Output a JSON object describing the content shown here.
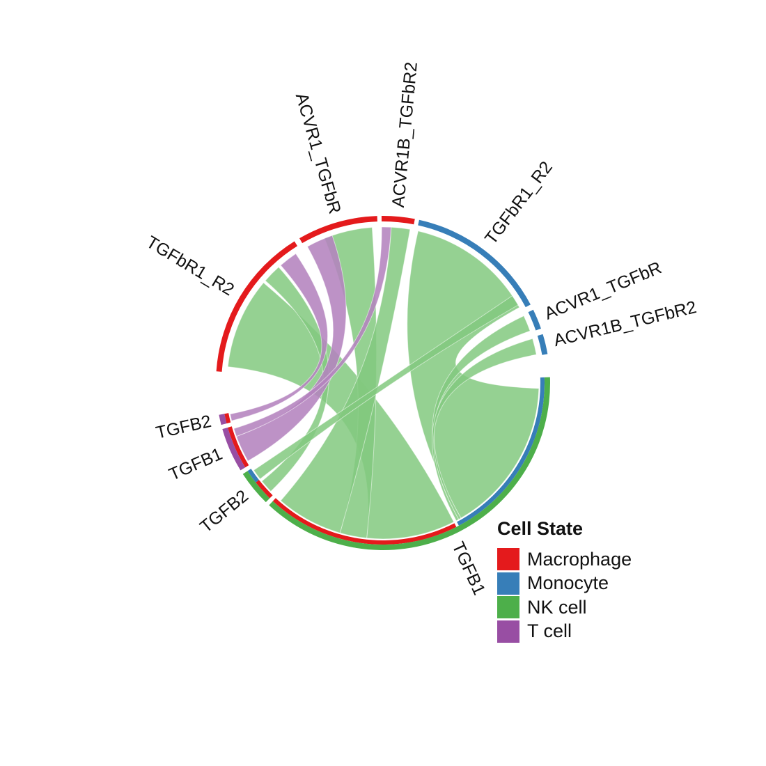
{
  "colors": {
    "Macrophage": "#E41A1C",
    "Monocyte": "#377EB8",
    "NK cell": "#4DAF4A",
    "T cell": "#984EA3",
    "chord_nk": "#82C97F",
    "chord_t": "#B483BE"
  },
  "legend": {
    "title": "Cell State",
    "items": [
      {
        "label": "Macrophage",
        "color": "#E41A1C"
      },
      {
        "label": "Monocyte",
        "color": "#377EB8"
      },
      {
        "label": "NK cell",
        "color": "#4DAF4A"
      },
      {
        "label": "T cell",
        "color": "#984EA3"
      }
    ]
  },
  "chart_data": {
    "type": "chord",
    "sectors": [
      {
        "id": "mac_TGFbR1_R2",
        "label": "TGFbR1_R2",
        "cell": "Macrophage",
        "role": "receptor",
        "start": 274,
        "end": 328
      },
      {
        "id": "mac_ACVR1_TGFbR",
        "label": "ACVR1_TGFbR",
        "cell": "Macrophage",
        "role": "receptor",
        "start": 330,
        "end": 358
      },
      {
        "id": "mac_ACVR1B_TGFbR2",
        "label": "ACVR1B_TGFbR2",
        "cell": "Macrophage",
        "role": "receptor",
        "start": 359.5,
        "end": 11
      },
      {
        "id": "mono_TGFbR1_R2",
        "label": "TGFbR1_R2",
        "cell": "Monocyte",
        "role": "receptor",
        "start": 12.5,
        "end": 62
      },
      {
        "id": "mono_ACVR1_TGFbR",
        "label": "ACVR1_TGFbR",
        "cell": "Monocyte",
        "role": "receptor",
        "start": 64,
        "end": 71
      },
      {
        "id": "mono_ACVR1B_TGFbR2",
        "label": "ACVR1B_TGFbR2",
        "cell": "Monocyte",
        "role": "receptor",
        "start": 73,
        "end": 80
      },
      {
        "id": "nk_TGFB1",
        "label": "TGFB1",
        "cell": "NK cell",
        "role": "ligand",
        "start": 88,
        "end": 223
      },
      {
        "id": "nk_TGFB2",
        "label": "TGFB2",
        "cell": "NK cell",
        "role": "ligand",
        "start": 224.5,
        "end": 237
      },
      {
        "id": "t_TGFB1",
        "label": "TGFB1",
        "cell": "T cell",
        "role": "ligand",
        "start": 238.5,
        "end": 254
      },
      {
        "id": "t_TGFB2",
        "label": "TGFB2",
        "cell": "T cell",
        "role": "ligand",
        "start": 255.5,
        "end": 259
      }
    ],
    "inner_track": [
      {
        "cell": "Monocyte",
        "start": 88,
        "end": 152
      },
      {
        "cell": "Macrophage",
        "start": 153,
        "end": 223
      },
      {
        "cell": "Macrophage",
        "start": 224.5,
        "end": 232
      },
      {
        "cell": "Monocyte",
        "start": 232,
        "end": 237
      },
      {
        "cell": "Macrophage",
        "start": 238.5,
        "end": 254
      },
      {
        "cell": "Macrophage",
        "start": 255.5,
        "end": 259
      }
    ],
    "links": [
      {
        "source": "NK cell",
        "ligand": "TGFB1",
        "target": "Monocyte",
        "receptor": "TGFbR1_R2",
        "from": [
          92,
          150
        ],
        "to": [
          13,
          61
        ],
        "color": "chord_nk"
      },
      {
        "source": "NK cell",
        "ligand": "TGFB1",
        "target": "Monocyte",
        "receptor": "ACVR1_TGFbR",
        "from": [
          150,
          151
        ],
        "to": [
          64.5,
          70.5
        ],
        "color": "chord_nk"
      },
      {
        "source": "NK cell",
        "ligand": "TGFB1",
        "target": "Monocyte",
        "receptor": "ACVR1B_TGFbR2",
        "from": [
          151,
          152
        ],
        "to": [
          73.5,
          79.5
        ],
        "color": "chord_nk"
      },
      {
        "source": "NK cell",
        "ligand": "TGFB1",
        "target": "Macrophage",
        "receptor": "TGFbR1_R2",
        "from": [
          153,
          186
        ],
        "to": [
          276,
          310
        ],
        "color": "chord_nk"
      },
      {
        "source": "NK cell",
        "ligand": "TGFB1",
        "target": "Macrophage",
        "receptor": "ACVR1_TGFbR",
        "from": [
          186,
          196
        ],
        "to": [
          338,
          356
        ],
        "color": "chord_nk"
      },
      {
        "source": "NK cell",
        "ligand": "TGFB1",
        "target": "Macrophage",
        "receptor": "ACVR1B_TGFbR2",
        "from": [
          196,
          221
        ],
        "to": [
          3,
          10
        ],
        "color": "chord_nk"
      },
      {
        "source": "NK cell",
        "ligand": "TGFB2",
        "target": "Macrophage",
        "receptor": "TGFbR1_R2",
        "from": [
          226,
          231
        ],
        "to": [
          311,
          318
        ],
        "color": "chord_nk"
      },
      {
        "source": "NK cell",
        "ligand": "TGFB2",
        "target": "Monocyte",
        "receptor": "TGFbR1_R2",
        "from": [
          232,
          236
        ],
        "to": [
          56,
          60
        ],
        "color": "chord_nk"
      },
      {
        "source": "T cell",
        "ligand": "TGFB1",
        "target": "Macrophage",
        "receptor": "ACVR1_TGFbR",
        "from": [
          240,
          250
        ],
        "to": [
          331,
          341
        ],
        "color": "chord_t"
      },
      {
        "source": "T cell",
        "ligand": "TGFB1",
        "target": "Macrophage",
        "receptor": "ACVR1B_TGFbR2",
        "from": [
          250,
          253
        ],
        "to": [
          359.5,
          3
        ],
        "color": "chord_t"
      },
      {
        "source": "T cell",
        "ligand": "TGFB2",
        "target": "Macrophage",
        "receptor": "TGFbR1_R2",
        "from": [
          256,
          258.5
        ],
        "to": [
          319,
          326
        ],
        "color": "chord_t"
      }
    ]
  }
}
